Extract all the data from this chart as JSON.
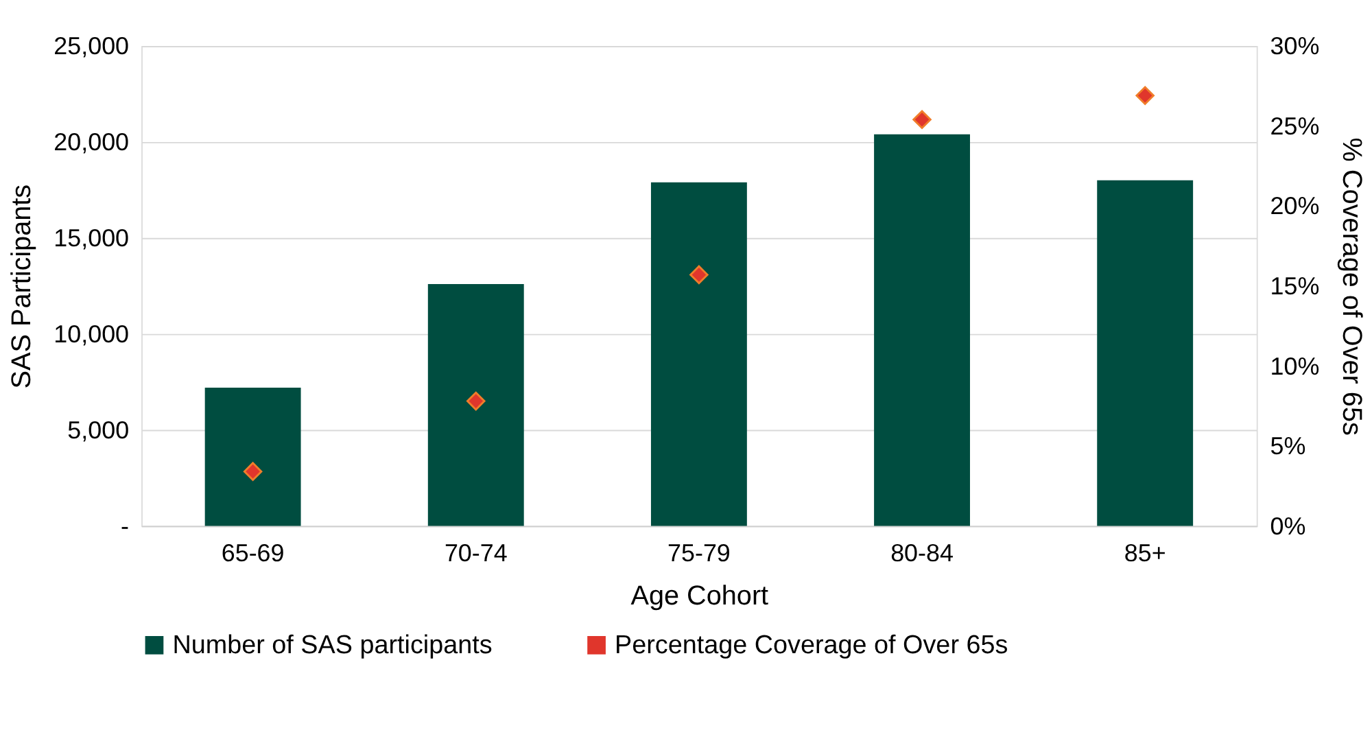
{
  "chart_data": {
    "type": "bar",
    "categories": [
      "65-69",
      "70-74",
      "75-79",
      "80-84",
      "85+"
    ],
    "xlabel": "Age Cohort",
    "ylabel": "SAS Participants",
    "y2label": "% Coverage of Over 65s",
    "series": [
      {
        "name": "Number of SAS participants",
        "color": "#004d40",
        "values": [
          7200,
          12600,
          17900,
          20400,
          18000
        ]
      },
      {
        "name": "Percentage Coverage of Over 65s",
        "type": "scatter",
        "axis": "y2",
        "marker": "diamond",
        "color": "#e0362c",
        "values": [
          3.4,
          7.8,
          15.7,
          25.4,
          26.9
        ]
      }
    ],
    "ylim": [
      0,
      25000
    ],
    "yticks": [
      {
        "value": 0,
        "label": "-"
      },
      {
        "value": 5000,
        "label": "5,000"
      },
      {
        "value": 10000,
        "label": "10,000"
      },
      {
        "value": 15000,
        "label": "15,000"
      },
      {
        "value": 20000,
        "label": "20,000"
      },
      {
        "value": 25000,
        "label": "25,000"
      }
    ],
    "y2lim": [
      0,
      30
    ],
    "y2ticks": [
      {
        "value": 0,
        "label": "0%"
      },
      {
        "value": 5,
        "label": "5%"
      },
      {
        "value": 10,
        "label": "10%"
      },
      {
        "value": 15,
        "label": "15%"
      },
      {
        "value": 20,
        "label": "20%"
      },
      {
        "value": 25,
        "label": "25%"
      },
      {
        "value": 30,
        "label": "30%"
      }
    ],
    "grid": "y",
    "legend": "bottom"
  }
}
